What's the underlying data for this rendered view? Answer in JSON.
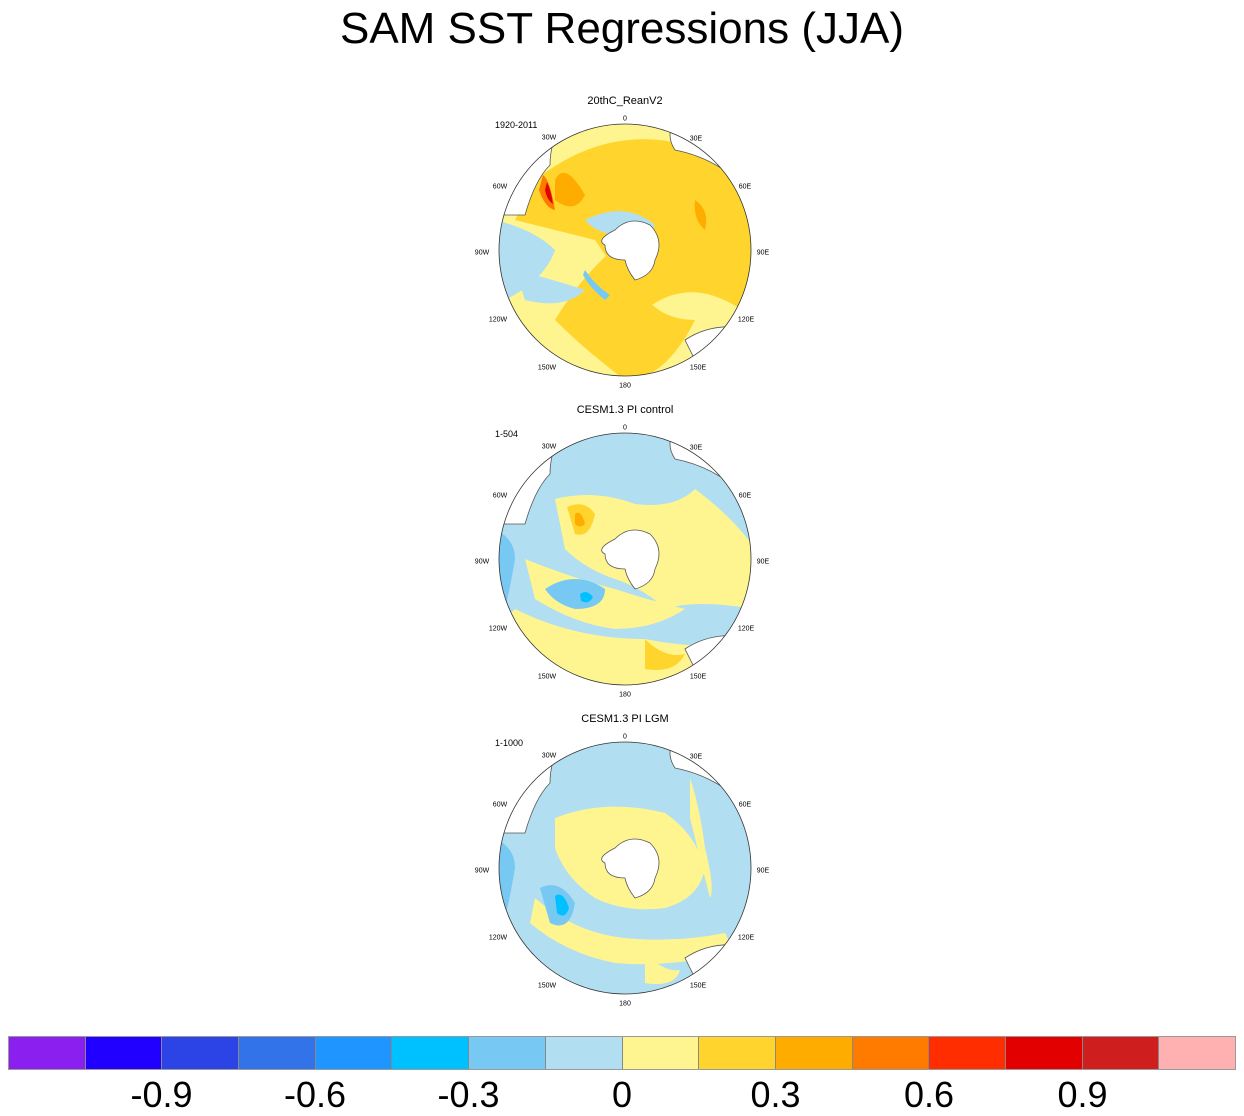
{
  "title": "SAM SST Regressions (JJA)",
  "panels": [
    {
      "id": "reanv2",
      "title": "20thC_ReanV2",
      "period": "1920-2011"
    },
    {
      "id": "pi-control",
      "title": "CESM1.3 PI control",
      "period": "1-504"
    },
    {
      "id": "pi-lgm",
      "title": "CESM1.3 PI LGM",
      "period": "1-1000"
    }
  ],
  "longitude_labels": [
    "0",
    "30E",
    "60E",
    "90E",
    "120E",
    "150E",
    "180",
    "150W",
    "120W",
    "90W",
    "60W",
    "30W"
  ],
  "colorbar": {
    "colors": [
      "#8a1ff0",
      "#2200ff",
      "#2c44e6",
      "#3373ea",
      "#1f96ff",
      "#00c1ff",
      "#77c8f2",
      "#b1def1",
      "#fff590",
      "#ffd52d",
      "#ffac00",
      "#ff7b00",
      "#ff2d00",
      "#e30000",
      "#cf1e1e",
      "#ffb1b1"
    ],
    "labels": [
      "-0.9",
      "-0.6",
      "-0.3",
      "0",
      "0.3",
      "0.6",
      "0.9"
    ],
    "label_boundary_index": [
      2,
      4,
      6,
      8,
      10,
      12,
      14
    ]
  }
}
